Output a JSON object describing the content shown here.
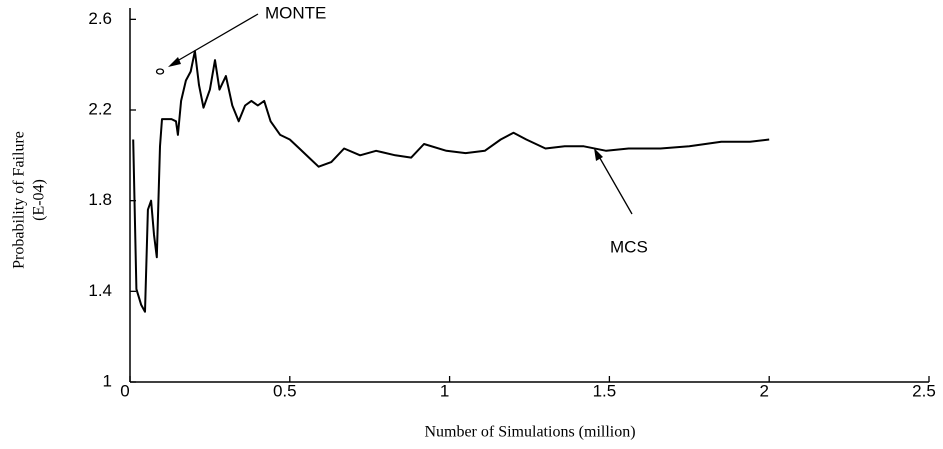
{
  "chart_data": {
    "type": "line",
    "xlabel": "Number of Simulations (million)",
    "ylabel": [
      "Probability of Failure",
      "(E-04)"
    ],
    "xlim": [
      0,
      2.5
    ],
    "xticks": [
      0,
      0.5,
      1,
      1.5,
      2,
      2.5
    ],
    "ylim": [
      1,
      2.65
    ],
    "yticks": [
      1,
      1.4,
      1.8,
      2.2,
      2.6
    ],
    "grid": false,
    "series": [
      {
        "name": "MCS",
        "color": "#000000",
        "marker": "none",
        "x": [
          0.01,
          0.02,
          0.035,
          0.047,
          0.056,
          0.066,
          0.075,
          0.084,
          0.094,
          0.1,
          0.13,
          0.144,
          0.15,
          0.16,
          0.175,
          0.19,
          0.203,
          0.216,
          0.23,
          0.25,
          0.266,
          0.28,
          0.3,
          0.32,
          0.34,
          0.36,
          0.38,
          0.4,
          0.42,
          0.44,
          0.47,
          0.5,
          0.53,
          0.56,
          0.59,
          0.63,
          0.67,
          0.72,
          0.77,
          0.83,
          0.88,
          0.92,
          0.99,
          1.05,
          1.11,
          1.16,
          1.2,
          1.24,
          1.3,
          1.36,
          1.42,
          1.49,
          1.56,
          1.66,
          1.75,
          1.85,
          1.94,
          2.0
        ],
        "values": [
          2.07,
          1.41,
          1.34,
          1.31,
          1.76,
          1.8,
          1.65,
          1.55,
          2.04,
          2.16,
          2.16,
          2.15,
          2.09,
          2.24,
          2.33,
          2.37,
          2.46,
          2.31,
          2.21,
          2.29,
          2.42,
          2.29,
          2.35,
          2.22,
          2.15,
          2.22,
          2.24,
          2.22,
          2.24,
          2.15,
          2.09,
          2.07,
          2.03,
          1.99,
          1.95,
          1.97,
          2.03,
          2.0,
          2.02,
          2.0,
          1.99,
          2.05,
          2.02,
          2.01,
          2.02,
          2.07,
          2.1,
          2.07,
          2.03,
          2.04,
          2.04,
          2.02,
          2.03,
          2.03,
          2.04,
          2.06,
          2.06,
          2.07
        ]
      },
      {
        "name": "MONTE",
        "color": "#000000",
        "marker": "circle",
        "x": [
          0.094
        ],
        "values": [
          2.37
        ]
      }
    ]
  }
}
